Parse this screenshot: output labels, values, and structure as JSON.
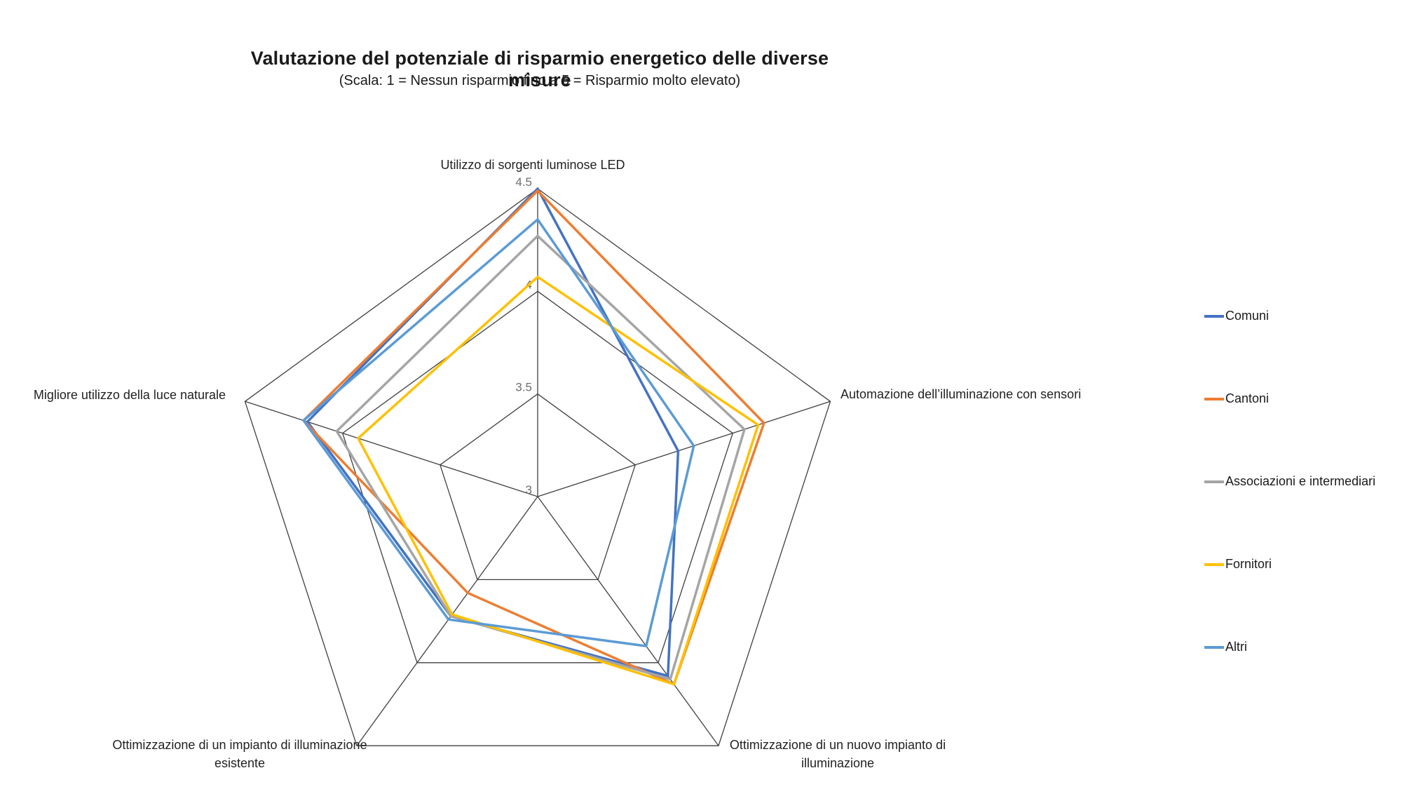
{
  "chart_data": {
    "type": "radar",
    "title": "Valutazione del potenziale di risparmio energetico delle diverse misure",
    "subtitle": "(Scala: 1 = Nessun risparmio fino a 5 = Risparmio molto elevato)",
    "categories": [
      "Utilizzo di sorgenti luminose LED",
      "Automazione dell’illuminazione con sensori",
      "Ottimizzazione di un nuovo impianto di illuminazione",
      "Ottimizzazione di un impianto di illuminazione esistente",
      "Migliore utilizzo della luce naturale"
    ],
    "category_label_lines": [
      [
        "Utilizzo di sorgenti luminose LED"
      ],
      [
        "Automazione dell’illuminazione con sensori"
      ],
      [
        "Ottimizzazione di un nuovo impianto di",
        "illuminazione"
      ],
      [
        "Ottimizzazione di un impianto di illuminazione",
        "esistente"
      ],
      [
        "Migliore utilizzo della luce naturale"
      ]
    ],
    "r_range": [
      3,
      4.5
    ],
    "ticks": [
      3,
      3.5,
      4,
      4.5
    ],
    "tick_labels": [
      "3",
      "3.5",
      "4",
      "4.5"
    ],
    "grid": true,
    "legend_position": "right",
    "series": [
      {
        "name": "Comuni",
        "color": "#4472C4",
        "values": [
          4.5,
          3.72,
          4.08,
          3.72,
          4.18
        ]
      },
      {
        "name": "Cantoni",
        "color": "#ED7D31",
        "values": [
          4.49,
          4.16,
          4.13,
          3.58,
          4.2
        ]
      },
      {
        "name": "Associazioni e intermediari",
        "color": "#A5A5A5",
        "values": [
          4.27,
          4.06,
          4.1,
          3.72,
          4.03
        ]
      },
      {
        "name": "Fornitori",
        "color": "#FFC000",
        "values": [
          4.07,
          4.13,
          4.13,
          3.71,
          3.92
        ]
      },
      {
        "name": "Altri",
        "color": "#5B9BD5",
        "values": [
          4.35,
          3.8,
          3.9,
          3.74,
          4.2
        ]
      }
    ]
  }
}
